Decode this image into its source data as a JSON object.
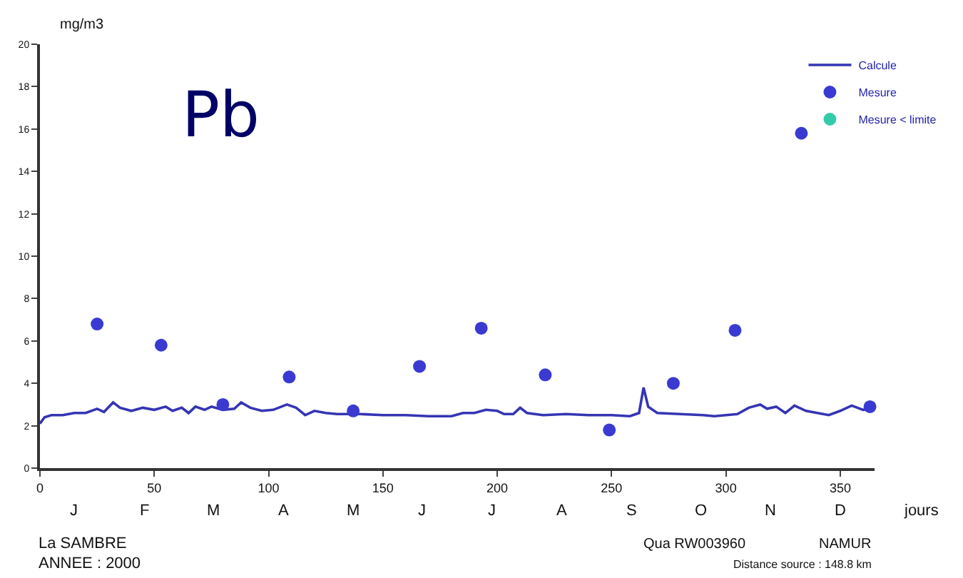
{
  "chart_data": {
    "type": "line",
    "title": "Pb",
    "ylabel": "mg/m3",
    "xlabel": "jours",
    "xlim": [
      0,
      365
    ],
    "xticks": [
      0,
      50,
      100,
      150,
      200,
      250,
      300,
      350
    ],
    "ylim": [
      0,
      20
    ],
    "yticks": [
      0,
      2,
      4,
      6,
      8,
      10,
      12,
      14,
      16,
      18,
      20
    ],
    "grid": false,
    "legend": "top right",
    "series": [
      {
        "name": "Calcule",
        "color": "#3535b5",
        "marker": "none",
        "line_style": "solid",
        "x": [
          0,
          2,
          5,
          10,
          15,
          20,
          25,
          28,
          32,
          35,
          40,
          45,
          50,
          55,
          58,
          62,
          65,
          68,
          72,
          75,
          80,
          85,
          88,
          92,
          97,
          102,
          108,
          112,
          116,
          120,
          125,
          130,
          140,
          150,
          160,
          170,
          180,
          185,
          190,
          195,
          200,
          203,
          207,
          210,
          213,
          220,
          230,
          240,
          250,
          258,
          262,
          264,
          266,
          270,
          280,
          290,
          295,
          300,
          305,
          310,
          315,
          318,
          322,
          326,
          330,
          335,
          340,
          345,
          350,
          355,
          360,
          365
        ],
        "values": [
          2.1,
          2.4,
          2.5,
          2.5,
          2.6,
          2.6,
          2.8,
          2.65,
          3.1,
          2.85,
          2.7,
          2.85,
          2.75,
          2.9,
          2.7,
          2.85,
          2.6,
          2.9,
          2.75,
          2.9,
          2.75,
          2.8,
          3.1,
          2.85,
          2.7,
          2.75,
          3.0,
          2.85,
          2.5,
          2.7,
          2.6,
          2.55,
          2.55,
          2.5,
          2.5,
          2.45,
          2.45,
          2.6,
          2.6,
          2.75,
          2.7,
          2.55,
          2.55,
          2.85,
          2.6,
          2.5,
          2.55,
          2.5,
          2.5,
          2.45,
          2.6,
          3.8,
          2.9,
          2.6,
          2.55,
          2.5,
          2.45,
          2.5,
          2.55,
          2.85,
          3.0,
          2.8,
          2.9,
          2.6,
          2.95,
          2.7,
          2.6,
          2.5,
          2.7,
          2.95,
          2.75,
          2.85
        ]
      },
      {
        "name": "Mesure",
        "type": "scatter",
        "color": "#3a3ad2",
        "marker": "circle",
        "x": [
          25,
          53,
          80,
          109,
          137,
          166,
          193,
          221,
          249,
          277,
          304,
          333,
          363
        ],
        "values": [
          6.8,
          5.8,
          3.0,
          4.3,
          2.7,
          4.8,
          6.6,
          4.4,
          1.8,
          4.0,
          6.5,
          15.8,
          2.9
        ]
      },
      {
        "name": "Mesure < limite",
        "type": "scatter",
        "color": "#33ccaa",
        "marker": "cross",
        "values": [
          null
        ]
      }
    ],
    "annotations": [
      "J",
      "F",
      "M",
      "A",
      "M",
      "J",
      "J",
      "A",
      "S",
      "O",
      "N",
      "D",
      "La SAMBRE",
      "ANNEE : 2000",
      "Qua RW003960",
      "NAMUR",
      "Distance source : 148.8 km"
    ]
  }
}
